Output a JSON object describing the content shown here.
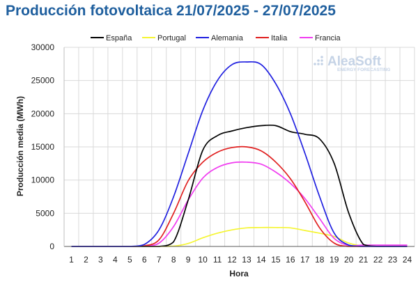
{
  "chart_data": {
    "type": "line",
    "title": "Producción fotovoltaica 21/07/2025 - 27/07/2025",
    "xlabel": "Hora",
    "ylabel": "Producción media (MWh)",
    "categories": [
      "1",
      "2",
      "3",
      "4",
      "5",
      "6",
      "7",
      "8",
      "9",
      "10",
      "11",
      "12",
      "13",
      "14",
      "15",
      "16",
      "17",
      "18",
      "19",
      "20",
      "21",
      "22",
      "23",
      "24"
    ],
    "ylim": [
      0,
      30000
    ],
    "yticks": [
      0,
      5000,
      10000,
      15000,
      20000,
      25000,
      30000
    ],
    "grid": true,
    "legend_position": "top",
    "series": [
      {
        "name": "España",
        "color": "#000000",
        "values": [
          0,
          0,
          0,
          0,
          0,
          0,
          0,
          700,
          7000,
          14500,
          16700,
          17400,
          17900,
          18200,
          18200,
          17300,
          16900,
          16200,
          12500,
          5000,
          300,
          0,
          0,
          0
        ]
      },
      {
        "name": "Portugal",
        "color": "#f5f531",
        "values": [
          0,
          0,
          0,
          0,
          0,
          0,
          0,
          50,
          450,
          1300,
          2000,
          2500,
          2800,
          2850,
          2850,
          2800,
          2400,
          2000,
          1500,
          500,
          50,
          0,
          0,
          0
        ]
      },
      {
        "name": "Alemania",
        "color": "#1f1fe0",
        "values": [
          0,
          0,
          0,
          0,
          0,
          300,
          2500,
          7500,
          14000,
          20500,
          25000,
          27400,
          27800,
          27400,
          24500,
          20000,
          14000,
          7500,
          2000,
          200,
          0,
          0,
          0,
          0
        ]
      },
      {
        "name": "Italia",
        "color": "#e01e1e",
        "values": [
          0,
          0,
          0,
          0,
          0,
          100,
          1000,
          5000,
          9900,
          12700,
          14200,
          14900,
          15000,
          14400,
          12700,
          10200,
          6700,
          2800,
          500,
          0,
          0,
          0,
          0,
          0
        ]
      },
      {
        "name": "Francia",
        "color": "#f03cf0",
        "values": [
          0,
          0,
          0,
          0,
          0,
          80,
          500,
          3000,
          7000,
          10300,
          11900,
          12600,
          12700,
          12400,
          11200,
          9500,
          7200,
          4200,
          1200,
          150,
          200,
          200,
          200,
          200
        ]
      }
    ],
    "watermark": {
      "brand": "AleaSoft",
      "tagline": "ENERGY FORECASTING"
    }
  }
}
